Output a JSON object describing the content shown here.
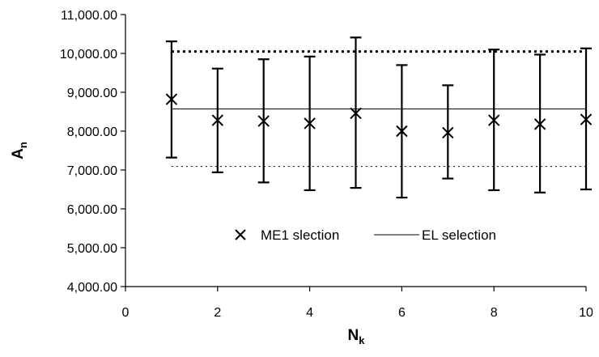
{
  "chart_data": {
    "type": "scatter",
    "title": "",
    "xlabel": {
      "main": "N",
      "sub": "k"
    },
    "ylabel": {
      "main": "A",
      "sub": "n"
    },
    "xlim": [
      0,
      10
    ],
    "ylim": [
      4000,
      11000
    ],
    "x_ticks": [
      0,
      2,
      4,
      6,
      8,
      10
    ],
    "y_ticks": [
      4000,
      5000,
      6000,
      7000,
      8000,
      9000,
      10000,
      11000
    ],
    "x_tick_labels": [
      "0",
      "2",
      "4",
      "6",
      "8",
      "10"
    ],
    "y_tick_labels": [
      "4,000.00",
      "5,000.00",
      "6,000.00",
      "7,000.00",
      "8,000.00",
      "9,000.00",
      "10,000.00",
      "11,000.00"
    ],
    "grid": false,
    "legend_position": "center",
    "series": [
      {
        "name": "ME1 slection",
        "marker": "x",
        "x": [
          1,
          2,
          3,
          4,
          5,
          6,
          7,
          8,
          9,
          10
        ],
        "y": [
          8820,
          8280,
          8260,
          8200,
          8460,
          8000,
          7960,
          8280,
          8180,
          8300
        ],
        "error_low": [
          7320,
          6940,
          6680,
          6480,
          6540,
          6290,
          6780,
          6480,
          6420,
          6500
        ],
        "error_high": [
          10310,
          9610,
          9850,
          9920,
          10410,
          9700,
          9180,
          10100,
          9970,
          10130
        ]
      },
      {
        "name": "EL selection",
        "line_style": "solid",
        "x": [
          1,
          10
        ],
        "y": [
          8570,
          8570
        ]
      }
    ],
    "reference_lines": [
      {
        "style": "dotted-bold",
        "x": [
          1,
          10
        ],
        "y": [
          10050,
          10050
        ]
      },
      {
        "style": "dotted-thin",
        "x": [
          1,
          10
        ],
        "y": [
          7090,
          7090
        ]
      }
    ],
    "colors": {
      "marks": "#000000",
      "background": "#ffffff"
    }
  }
}
